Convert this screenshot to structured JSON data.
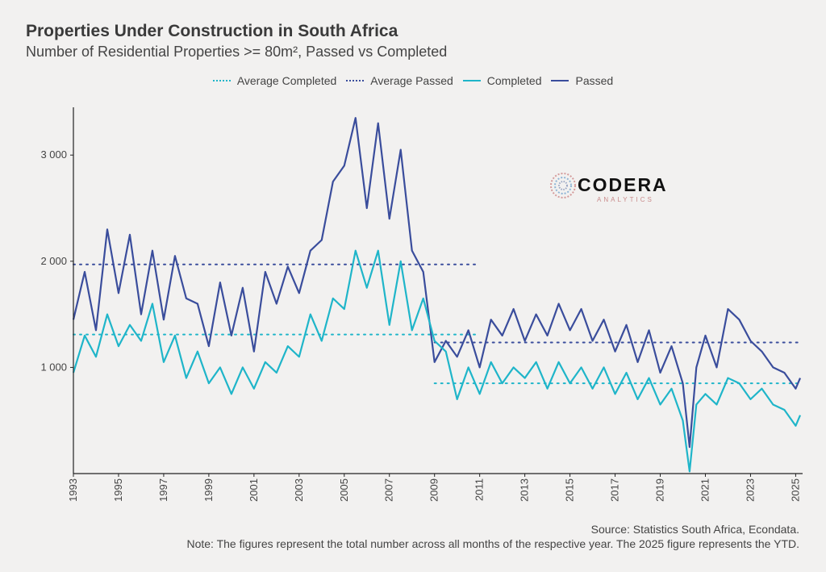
{
  "title": "Properties Under Construction in South Africa",
  "subtitle": "Number of Residential Properties >= 80m², Passed vs Completed",
  "legend": [
    {
      "label": "Average Completed",
      "style": "dotted",
      "color": "#1fb5c9"
    },
    {
      "label": "Average Passed",
      "style": "dotted",
      "color": "#3a4d9c"
    },
    {
      "label": "Completed",
      "style": "solid",
      "color": "#1fb5c9"
    },
    {
      "label": "Passed",
      "style": "solid",
      "color": "#3a4d9c"
    }
  ],
  "logo": {
    "word": "CODERA",
    "sub": "ANALYTICS"
  },
  "footer": {
    "source": "Source: Statistics South Africa, Econdata.",
    "note": "Note: The figures represent the total number across all months of the respective year. The 2025 figure represents the YTD."
  },
  "chart_data": {
    "type": "line",
    "x_axis": {
      "min": 1993.0,
      "max": 2025.2,
      "ticks": [
        1993,
        1995,
        1997,
        1999,
        2001,
        2003,
        2005,
        2007,
        2009,
        2011,
        2013,
        2015,
        2017,
        2019,
        2021,
        2023,
        2025
      ]
    },
    "y_axis": {
      "min": 0,
      "max": 3450,
      "ticks": [
        {
          "value": 1000,
          "label": "1 000"
        },
        {
          "value": 2000,
          "label": "2 000"
        },
        {
          "value": 3000,
          "label": "3 000"
        }
      ]
    },
    "grid": false,
    "legend_position": "top-center",
    "x": [
      1993.0,
      1993.5,
      1994.0,
      1994.5,
      1995.0,
      1995.5,
      1996.0,
      1996.5,
      1997.0,
      1997.5,
      1998.0,
      1998.5,
      1999.0,
      1999.5,
      2000.0,
      2000.5,
      2001.0,
      2001.5,
      2002.0,
      2002.5,
      2003.0,
      2003.5,
      2004.0,
      2004.5,
      2005.0,
      2005.5,
      2006.0,
      2006.5,
      2007.0,
      2007.5,
      2008.0,
      2008.5,
      2009.0,
      2009.5,
      2010.0,
      2010.5,
      2011.0,
      2011.5,
      2012.0,
      2012.5,
      2013.0,
      2013.5,
      2014.0,
      2014.5,
      2015.0,
      2015.5,
      2016.0,
      2016.5,
      2017.0,
      2017.5,
      2018.0,
      2018.5,
      2019.0,
      2019.5,
      2020.0,
      2020.3,
      2020.6,
      2021.0,
      2021.5,
      2022.0,
      2022.5,
      2023.0,
      2023.5,
      2024.0,
      2024.5,
      2025.0,
      2025.2
    ],
    "series": [
      {
        "name": "Passed",
        "color": "#3a4d9c",
        "values": [
          1450,
          1900,
          1350,
          2300,
          1700,
          2250,
          1500,
          2100,
          1450,
          2050,
          1650,
          1600,
          1200,
          1800,
          1300,
          1750,
          1150,
          1900,
          1600,
          1950,
          1700,
          2100,
          2200,
          2750,
          2900,
          3350,
          2500,
          3300,
          2400,
          3050,
          2100,
          1900,
          1050,
          1250,
          1100,
          1350,
          1000,
          1450,
          1300,
          1550,
          1250,
          1500,
          1300,
          1600,
          1350,
          1550,
          1250,
          1450,
          1150,
          1400,
          1050,
          1350,
          950,
          1200,
          850,
          250,
          1000,
          1300,
          1000,
          1550,
          1450,
          1250,
          1150,
          1000,
          950,
          800,
          900
        ]
      },
      {
        "name": "Completed",
        "color": "#1fb5c9",
        "values": [
          950,
          1300,
          1100,
          1500,
          1200,
          1400,
          1250,
          1600,
          1050,
          1300,
          900,
          1150,
          850,
          1000,
          750,
          1000,
          800,
          1050,
          950,
          1200,
          1100,
          1500,
          1250,
          1650,
          1550,
          2100,
          1750,
          2100,
          1400,
          2000,
          1350,
          1650,
          1250,
          1150,
          700,
          1000,
          750,
          1050,
          850,
          1000,
          900,
          1050,
          800,
          1050,
          850,
          1000,
          800,
          1000,
          750,
          950,
          700,
          900,
          650,
          800,
          500,
          20,
          650,
          750,
          650,
          900,
          850,
          700,
          800,
          650,
          600,
          450,
          550
        ]
      },
      {
        "name": "Average Passed",
        "color": "#3a4d9c",
        "segments": [
          {
            "x": [
              1993.0,
              2011.0
            ],
            "y": 1970
          },
          {
            "x": [
              2009.0,
              2025.2
            ],
            "y": 1235
          }
        ]
      },
      {
        "name": "Average Completed",
        "color": "#1fb5c9",
        "segments": [
          {
            "x": [
              1993.0,
              2011.0
            ],
            "y": 1310
          },
          {
            "x": [
              2009.0,
              2025.2
            ],
            "y": 850
          }
        ]
      }
    ]
  }
}
